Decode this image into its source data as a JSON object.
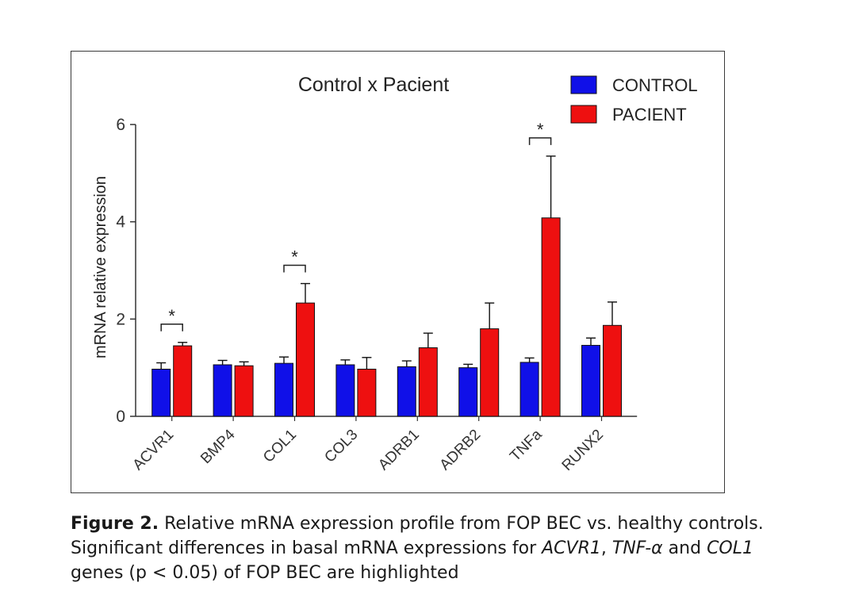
{
  "chart_data": {
    "type": "bar",
    "title": "Control x Pacient",
    "xlabel": "",
    "ylabel": "mRNA relative expression",
    "ylim": [
      0,
      6
    ],
    "yticks": [
      0,
      2,
      4,
      6
    ],
    "categories": [
      "ACVR1",
      "BMP4",
      "COL1",
      "COL3",
      "ADRB1",
      "ADRB2",
      "TNFa",
      "RUNX2"
    ],
    "series": [
      {
        "name": "CONTROL",
        "color": "#1010e8",
        "values": [
          0.97,
          1.06,
          1.09,
          1.06,
          1.02,
          1.0,
          1.11,
          1.46
        ],
        "errors": [
          0.13,
          0.09,
          0.13,
          0.1,
          0.12,
          0.07,
          0.09,
          0.15
        ]
      },
      {
        "name": "PACIENT",
        "color": "#ee1010",
        "values": [
          1.45,
          1.04,
          2.33,
          0.97,
          1.41,
          1.8,
          4.08,
          1.87
        ],
        "errors": [
          0.07,
          0.08,
          0.4,
          0.24,
          0.3,
          0.53,
          1.27,
          0.48
        ]
      }
    ],
    "significance": [
      {
        "category": "ACVR1",
        "label": "*"
      },
      {
        "category": "COL1",
        "label": "*"
      },
      {
        "category": "TNFa",
        "label": "*"
      }
    ],
    "legend_position": "top-right",
    "grid": false
  },
  "caption": {
    "lead": "Figure 2.",
    "part1": " Relative mRNA expression profile from FOP BEC vs. healthy controls. Significant differences in basal mRNA expressions for ",
    "gene1": "ACVR1",
    "sep1": ", ",
    "gene2": "TNF-α",
    "mid": " and ",
    "gene3": "COL1",
    "part2": " genes (p < 0.05) of FOP BEC are highlighted"
  }
}
